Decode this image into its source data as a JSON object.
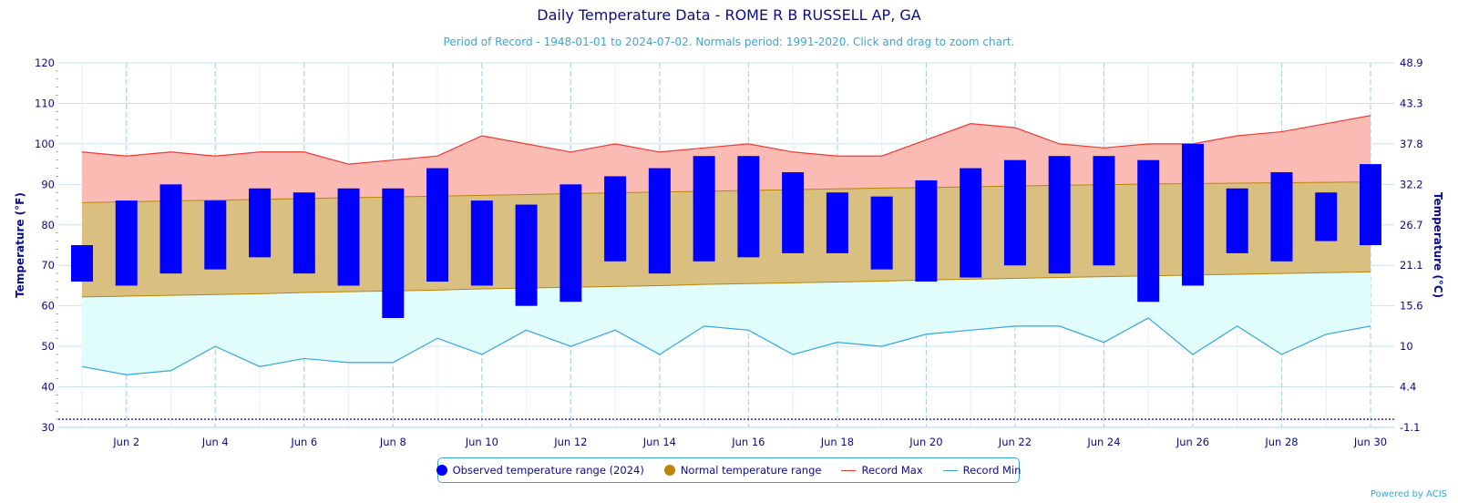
{
  "title": "Daily Temperature Data - ROME R B RUSSELL AP, GA",
  "subtitle": "Period of Record - 1948-01-01 to 2024-07-02. Normals period: 1991-2020. Click and drag to zoom chart.",
  "credit": "Powered by ACIS",
  "colors": {
    "observed": "#0000ff",
    "normal_fill": "#d9bf80",
    "normal_line": "#b8860b",
    "record_max_fill": "#fbbbb5",
    "record_max_line": "#ef3b32",
    "record_min_fill": "#e0fdfc",
    "record_min_line": "#35a6dd",
    "axis_text": "#0b0b8a",
    "grid": "#c7e3f0"
  },
  "legend": {
    "observed": "Observed temperature range (2024)",
    "normal": "Normal temperature range",
    "record_max": "Record Max",
    "record_min": "Record Min"
  },
  "chart_data": {
    "type": "bar",
    "ylabel_left": "Temperature (°F)",
    "ylabel_right": "Temperature (°C)",
    "ylim": [
      30,
      120
    ],
    "yticks_left": [
      "120",
      "110",
      "100",
      "90",
      "80",
      "70",
      "60",
      "50",
      "40",
      "30"
    ],
    "yticks_right": [
      "48.9",
      "43.3",
      "37.8",
      "32.2",
      "26.7",
      "21.1",
      "15.6",
      "10",
      "4.4",
      "-1.1"
    ],
    "xticks": [
      "Jun 2",
      "Jun 4",
      "Jun 6",
      "Jun 8",
      "Jun 10",
      "Jun 12",
      "Jun 14",
      "Jun 16",
      "Jun 18",
      "Jun 20",
      "Jun 22",
      "Jun 24",
      "Jun 26",
      "Jun 28",
      "Jun 30"
    ],
    "days": [
      1,
      2,
      3,
      4,
      5,
      6,
      7,
      8,
      9,
      10,
      11,
      12,
      13,
      14,
      15,
      16,
      17,
      18,
      19,
      20,
      21,
      22,
      23,
      24,
      25,
      26,
      27,
      28,
      29,
      30
    ],
    "grid": true,
    "legend_position": "bottom",
    "series": [
      {
        "name": "Observed temperature range (2024)",
        "low": [
          66,
          65,
          68,
          69,
          72,
          68,
          65,
          57,
          66,
          65,
          60,
          61,
          71,
          68,
          71,
          72,
          73,
          73,
          69,
          66,
          67,
          70,
          68,
          70,
          61,
          65,
          73,
          71,
          76,
          75
        ],
        "high": [
          75,
          86,
          90,
          86,
          89,
          88,
          89,
          89,
          94,
          86,
          85,
          90,
          92,
          94,
          97,
          97,
          93,
          88,
          87,
          91,
          94,
          96,
          97,
          97,
          96,
          100,
          89,
          93,
          88,
          95
        ]
      },
      {
        "name": "Normal temperature range",
        "low": [
          62.2,
          62.4,
          62.6,
          62.8,
          63.0,
          63.3,
          63.5,
          63.7,
          63.9,
          64.2,
          64.4,
          64.6,
          64.8,
          65.0,
          65.3,
          65.5,
          65.7,
          65.9,
          66.1,
          66.4,
          66.6,
          66.8,
          67.0,
          67.2,
          67.4,
          67.6,
          67.8,
          68.0,
          68.2,
          68.4
        ],
        "high": [
          85.5,
          85.7,
          85.9,
          86.1,
          86.3,
          86.5,
          86.7,
          86.9,
          87.1,
          87.3,
          87.5,
          87.7,
          87.9,
          88.1,
          88.3,
          88.5,
          88.7,
          88.9,
          89.1,
          89.2,
          89.4,
          89.6,
          89.8,
          89.9,
          90.1,
          90.2,
          90.3,
          90.4,
          90.5,
          90.6
        ]
      },
      {
        "name": "Record Max",
        "values": [
          98,
          97,
          98,
          97,
          98,
          98,
          95,
          96,
          97,
          102,
          100,
          98,
          100,
          98,
          99,
          100,
          98,
          97,
          97,
          101,
          105,
          104,
          100,
          99,
          100,
          100,
          102,
          103,
          105,
          107
        ]
      },
      {
        "name": "Record Min",
        "values": [
          45,
          43,
          44,
          50,
          45,
          47,
          46,
          46,
          52,
          48,
          54,
          50,
          54,
          48,
          55,
          54,
          48,
          51,
          50,
          53,
          54,
          55,
          55,
          51,
          57,
          48,
          55,
          48,
          53,
          55
        ]
      }
    ],
    "extra_dotted_line_value": 32
  }
}
